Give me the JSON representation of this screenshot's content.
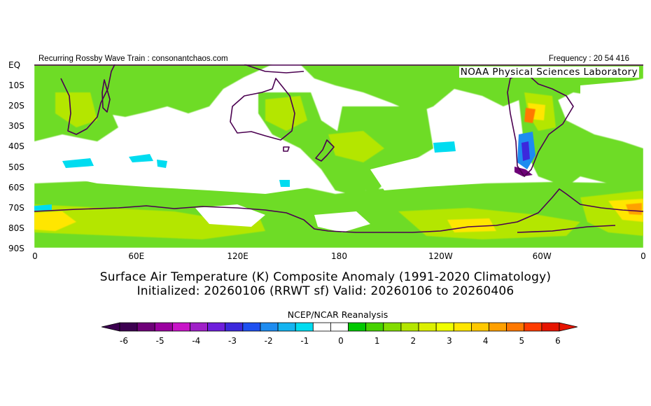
{
  "header": {
    "left": "Recurring Rossby Wave Train : consonantchaos.com",
    "right": "Frequency : 20 54 416"
  },
  "map": {
    "org": "NOAA Physical Sciences Laboratory",
    "lat_labels": [
      "EQ",
      "10S",
      "20S",
      "30S",
      "40S",
      "50S",
      "60S",
      "70S",
      "80S",
      "90S"
    ],
    "lon_labels": [
      "0",
      "60E",
      "120E",
      "180",
      "120W",
      "60W",
      "0"
    ],
    "coastline_color": "#4b0050"
  },
  "title": {
    "line1": "Surface Air Temperature (K) Composite Anomaly (1991-2020 Climatology)",
    "line2": "Initialized: 20260106 (RRWT sf) Valid: 20260106 to 20260406"
  },
  "source": "NCEP/NCAR Reanalysis",
  "colorbar": {
    "tick_labels": [
      "-6",
      "-5",
      "-4",
      "-3",
      "-2",
      "-1",
      "0",
      "1",
      "2",
      "3",
      "4",
      "5",
      "6"
    ],
    "colors": [
      "#3c0050",
      "#6e0078",
      "#9b00a0",
      "#c814c8",
      "#a020c8",
      "#6e1edc",
      "#3c28dc",
      "#1e50f0",
      "#1e8cf0",
      "#14b4f0",
      "#00dcf0",
      "#ffffff",
      "#ffffff",
      "#00c800",
      "#46d200",
      "#82dc00",
      "#b4e600",
      "#dcf000",
      "#f0ff00",
      "#ffe600",
      "#ffc800",
      "#ffa000",
      "#ff7800",
      "#ff3c00",
      "#e61400"
    ]
  }
}
